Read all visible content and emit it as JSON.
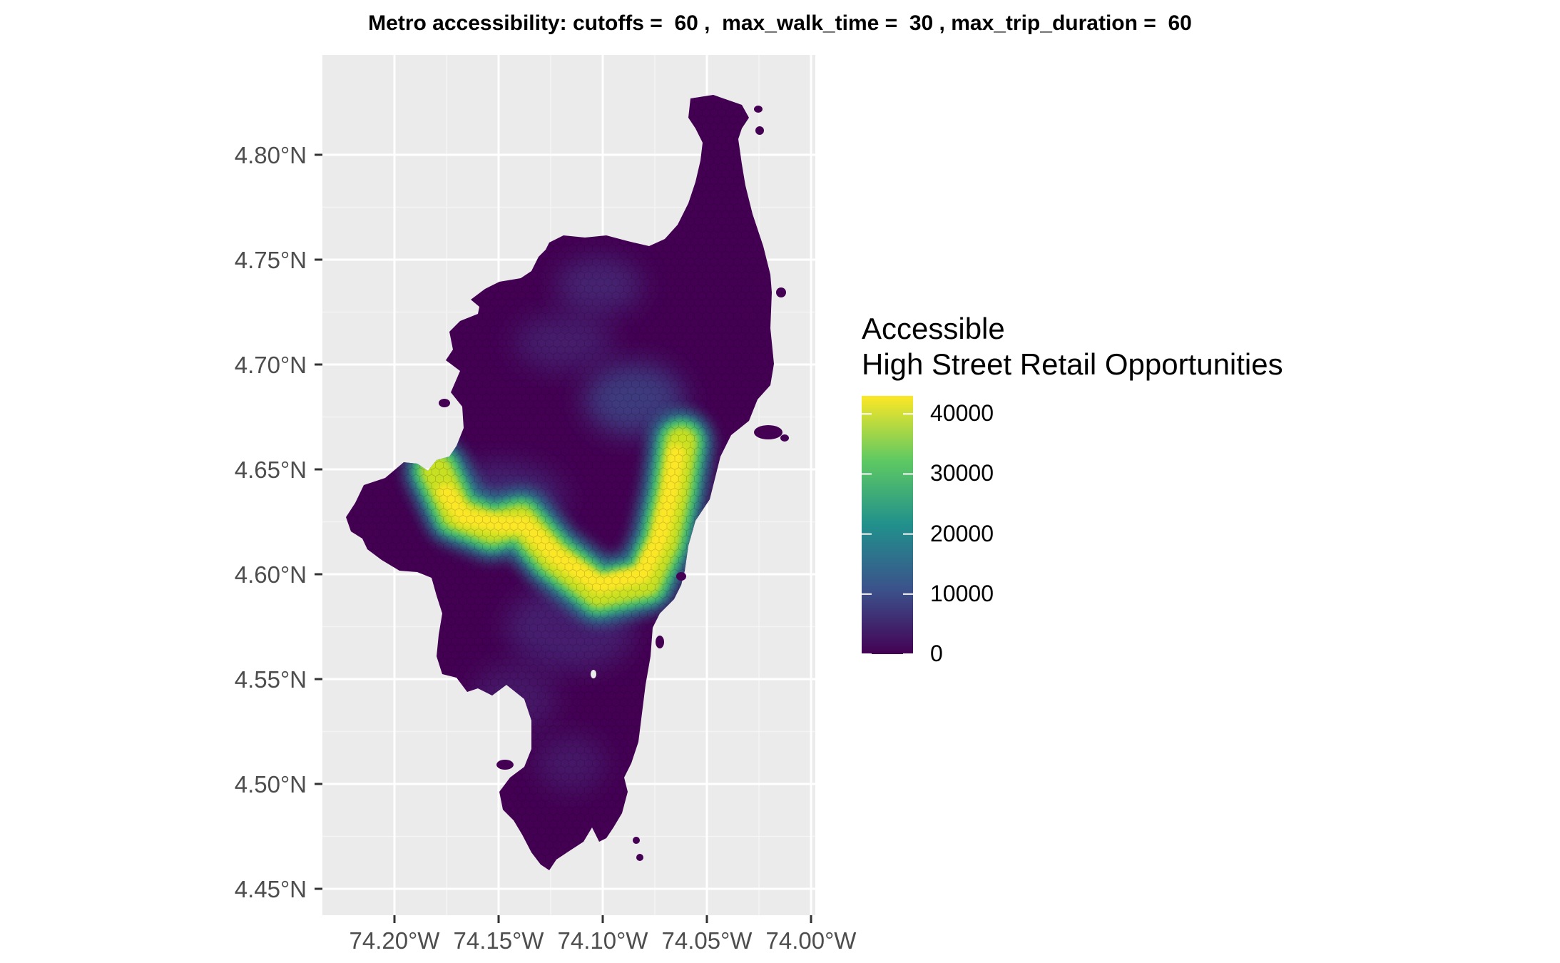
{
  "title": "Metro accessibility: cutoffs =  60 ,  max_walk_time =  30 , max_trip_duration =  60",
  "legend": {
    "title_line1": "Accessible",
    "title_line2": "High Street Retail Opportunities",
    "labels": [
      "40000",
      "30000",
      "20000",
      "10000",
      "0"
    ],
    "range": [
      0,
      43000
    ],
    "colors": [
      "#440154",
      "#3b528b",
      "#21908c",
      "#5ec962",
      "#fde725"
    ]
  },
  "axes": {
    "x_ticks": [
      "74.20°W",
      "74.15°W",
      "74.10°W",
      "74.05°W",
      "74.00°W"
    ],
    "y_ticks": [
      "4.80°N",
      "4.75°N",
      "4.70°N",
      "4.65°N",
      "4.60°N",
      "4.55°N",
      "4.50°N",
      "4.45°N"
    ],
    "panel_background": "#ebebeb",
    "grid_color": "#ffffff"
  },
  "map": {
    "region_fill": "#440154",
    "high_access_corridor": "yellow-green band from about 74.175°W 4.64°N to 74.10°W 4.595°N to 74.065°W 4.67°N"
  }
}
